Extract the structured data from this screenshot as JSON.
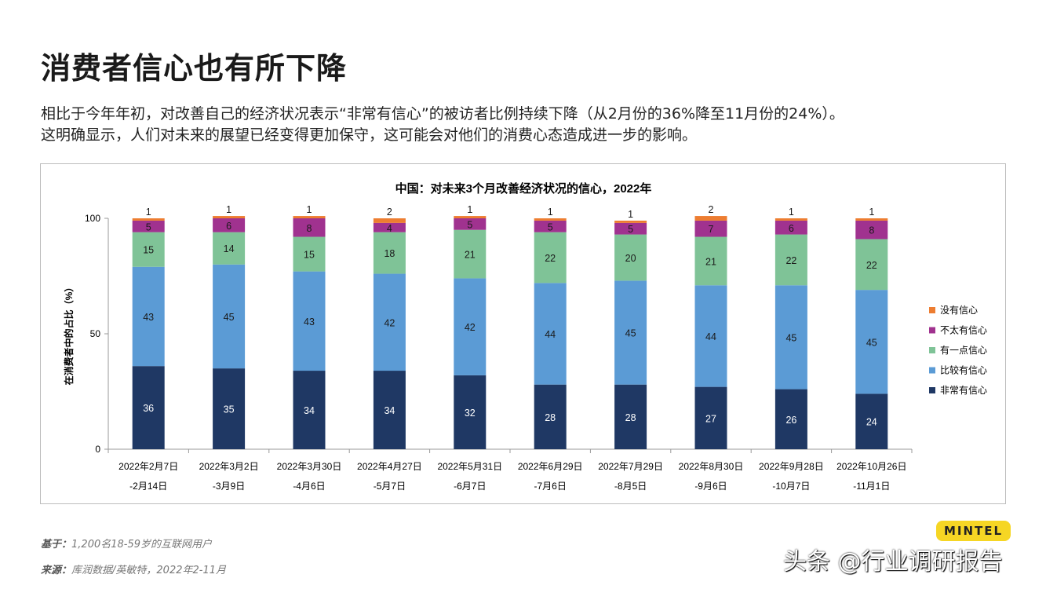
{
  "page": {
    "title": "消费者信心也有所下降",
    "desc_line1": "相比于今年年初，对改善自己的经济状况表示“非常有信心”的被访者比例持续下降（从2月份的36%降至11月份的24%）。",
    "desc_line2": "这明确显示，人们对未来的展望已经变得更加保守，这可能会对他们的消费心态造成进一步的影响。",
    "base_label": "基于：",
    "base_text": "1,200名18-59岁的互联网用户",
    "source_label": "来源：",
    "source_text": "库润数据/英敏特，2022年2-11月",
    "watermark": "头条 @行业调研报告",
    "logo": "MINTEL"
  },
  "chart_data": {
    "type": "bar",
    "stacked": true,
    "title": "中国：对未来3个月改善经济状况的信心，2022年",
    "ylabel": "在消费者中的占比（%）",
    "ylim": [
      0,
      100
    ],
    "yticks": [
      0,
      50,
      100
    ],
    "legend_position": "right",
    "categories": [
      [
        "2022年2月7日",
        "-2月14日"
      ],
      [
        "2022年3月2日",
        "-3月9日"
      ],
      [
        "2022年3月30日",
        "-4月6日"
      ],
      [
        "2022年4月27日",
        "-5月7日"
      ],
      [
        "2022年5月31日",
        "-6月7日"
      ],
      [
        "2022年6月29日",
        "-7月6日"
      ],
      [
        "2022年7月29日",
        "-8月5日"
      ],
      [
        "2022年8月30日",
        "-9月6日"
      ],
      [
        "2022年9月28日",
        "-10月7日"
      ],
      [
        "2022年10月26日",
        "-11月1日"
      ]
    ],
    "series": [
      {
        "name": "非常有信心",
        "color": "#1f3864",
        "values": [
          36,
          35,
          34,
          34,
          32,
          28,
          28,
          27,
          26,
          24
        ]
      },
      {
        "name": "比较有信心",
        "color": "#5b9bd5",
        "values": [
          43,
          45,
          43,
          42,
          42,
          44,
          45,
          44,
          45,
          45
        ]
      },
      {
        "name": "有一点信心",
        "color": "#7fc397",
        "values": [
          15,
          14,
          15,
          18,
          21,
          22,
          20,
          21,
          22,
          22
        ]
      },
      {
        "name": "不太有信心",
        "color": "#a0328f",
        "values": [
          5,
          6,
          8,
          4,
          5,
          5,
          5,
          7,
          6,
          8
        ]
      },
      {
        "name": "没有信心",
        "color": "#ed7d31",
        "values": [
          1,
          1,
          1,
          2,
          1,
          1,
          1,
          2,
          1,
          1
        ]
      }
    ]
  }
}
